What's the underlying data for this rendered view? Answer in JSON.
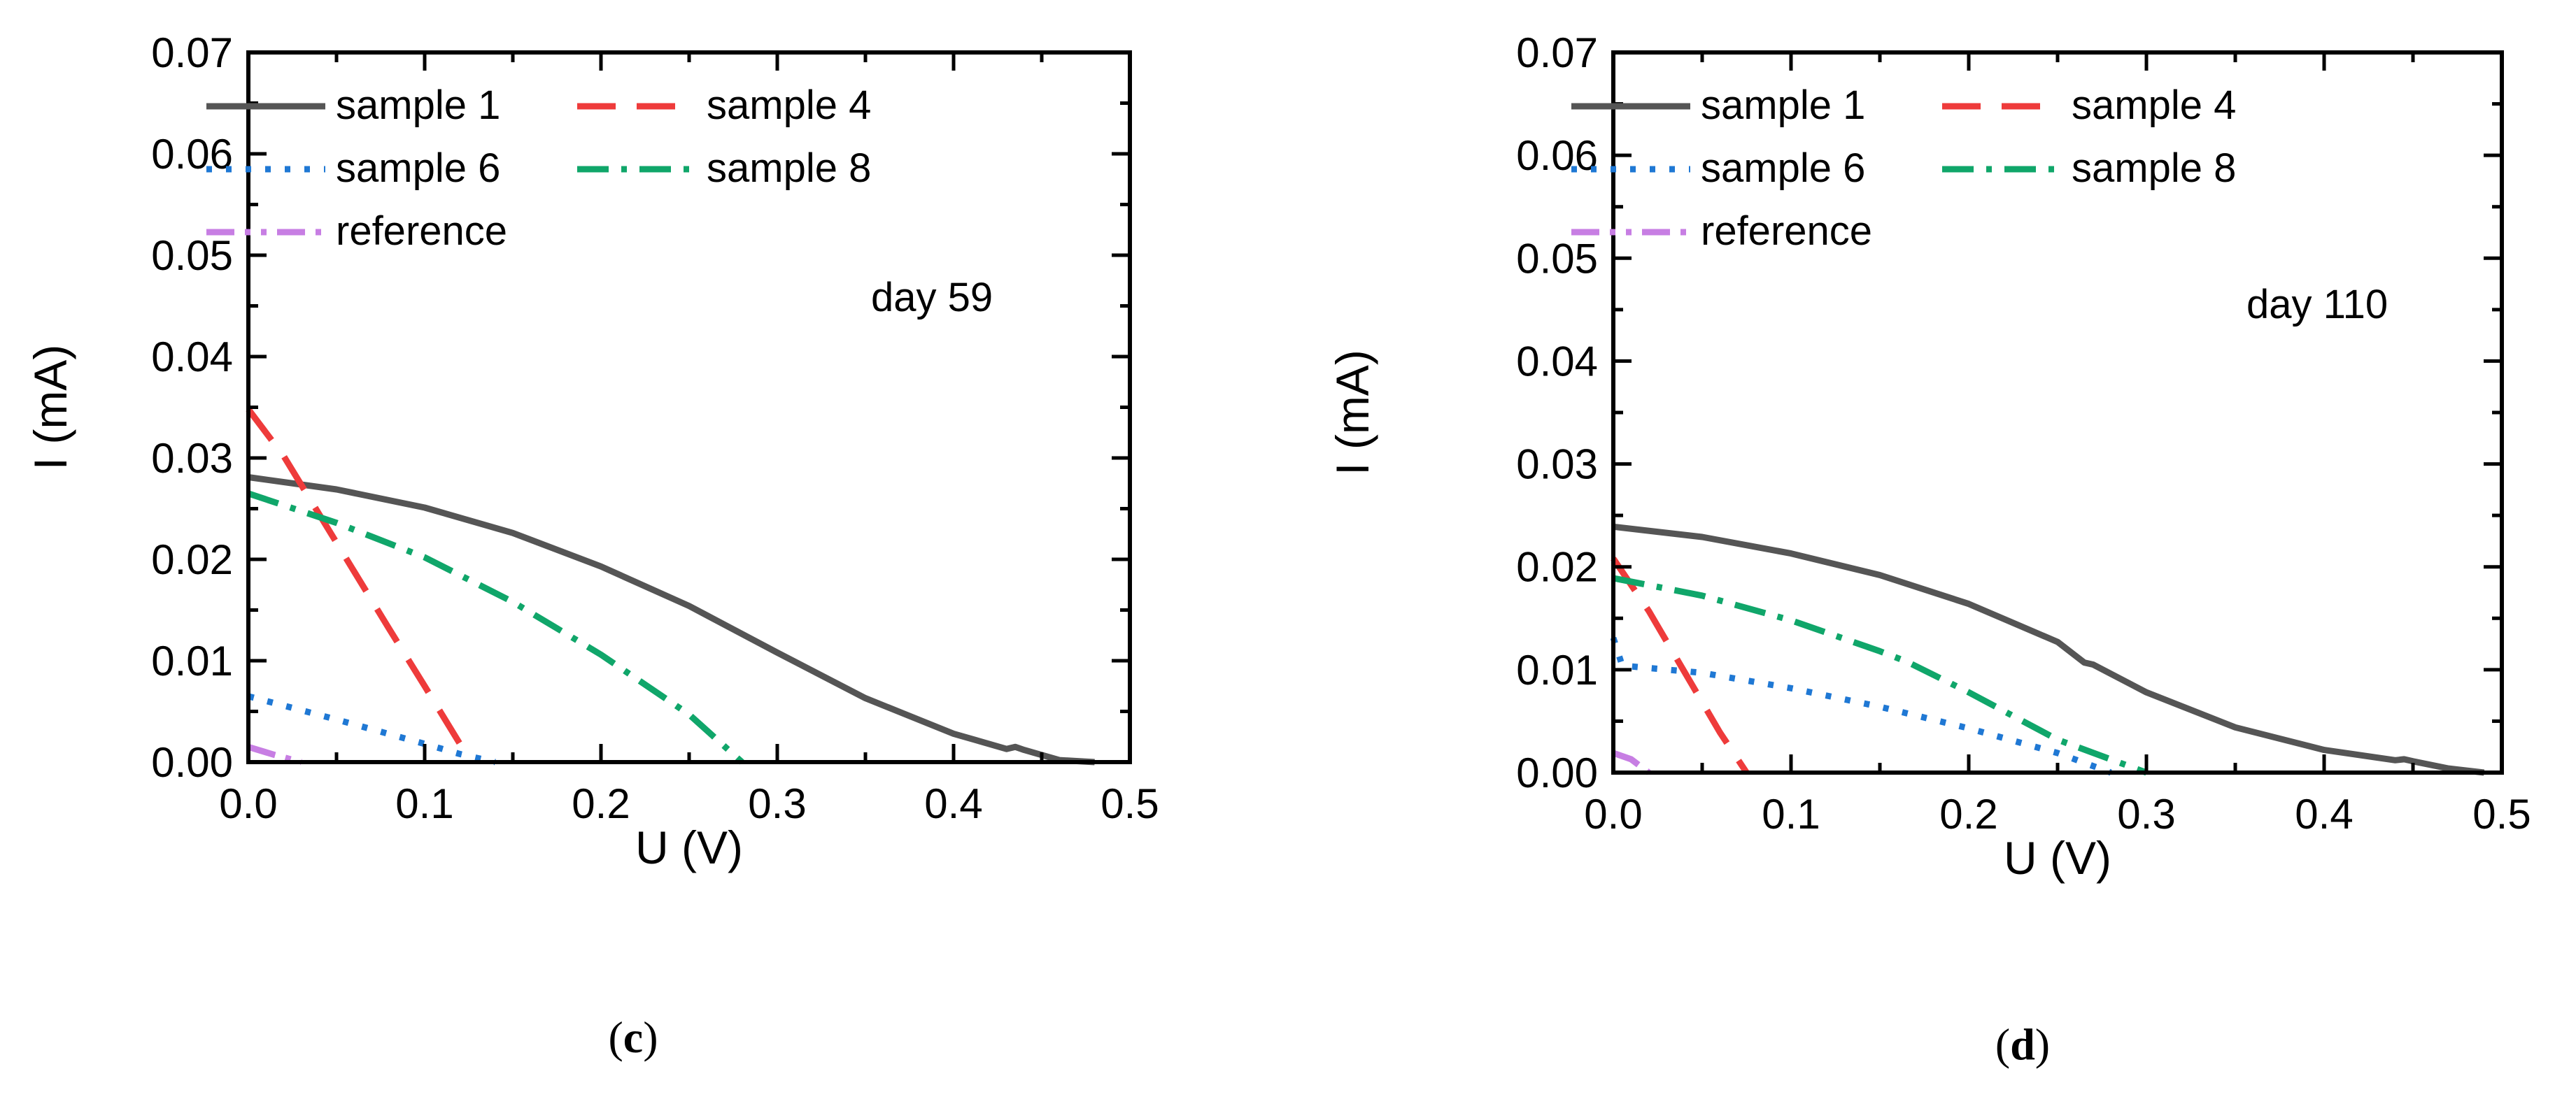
{
  "chart_data": [
    {
      "type": "line",
      "panel_caption": {
        "open": "(",
        "letter": "c",
        "close": ")"
      },
      "annotation": "day 59",
      "xlabel": "U (V)",
      "ylabel": "I (mA)",
      "xlim": [
        0.0,
        0.5
      ],
      "ylim": [
        0.0,
        0.07
      ],
      "xticks": [
        "0.0",
        "0.1",
        "0.2",
        "0.3",
        "0.4",
        "0.5"
      ],
      "yticks": [
        "0.00",
        "0.01",
        "0.02",
        "0.03",
        "0.04",
        "0.05",
        "0.06",
        "0.07"
      ],
      "legend_location": "top-left",
      "series": [
        {
          "name": "sample 1",
          "color": "#555555",
          "dash": "solid",
          "x": [
            0.0,
            0.05,
            0.1,
            0.15,
            0.2,
            0.25,
            0.3,
            0.35,
            0.4,
            0.43,
            0.435,
            0.44,
            0.46,
            0.48
          ],
          "y": [
            0.0281,
            0.0269,
            0.0251,
            0.0226,
            0.0193,
            0.0154,
            0.0108,
            0.0063,
            0.0028,
            0.0013,
            0.0015,
            0.0012,
            0.0002,
            0.0
          ]
        },
        {
          "name": "sample 4",
          "color": "#ee3b3b",
          "dash": "dashed",
          "x": [
            0.0,
            0.02,
            0.04,
            0.06,
            0.08,
            0.1,
            0.12,
            0.125
          ],
          "y": [
            0.0348,
            0.0302,
            0.0245,
            0.0188,
            0.0131,
            0.0075,
            0.0018,
            0.0
          ]
        },
        {
          "name": "sample 6",
          "color": "#1f78d4",
          "dash": "dotted",
          "x": [
            0.0,
            0.05,
            0.1,
            0.12,
            0.14
          ],
          "y": [
            0.0065,
            0.0042,
            0.0018,
            0.0008,
            0.0
          ]
        },
        {
          "name": "sample 8",
          "color": "#10a66a",
          "dash": "dashdot",
          "x": [
            0.0,
            0.05,
            0.1,
            0.15,
            0.2,
            0.25,
            0.28
          ],
          "y": [
            0.0265,
            0.0236,
            0.0202,
            0.0158,
            0.0106,
            0.0047,
            0.0
          ]
        },
        {
          "name": "reference",
          "color": "#c77ee3",
          "dash": "dashdotdot",
          "x": [
            0.0,
            0.015,
            0.03
          ],
          "y": [
            0.0015,
            0.0007,
            0.0
          ]
        }
      ]
    },
    {
      "type": "line",
      "panel_caption": {
        "open": "(",
        "letter": "d",
        "close": ")"
      },
      "annotation": "day 110",
      "xlabel": "U (V)",
      "ylabel": "I (mA)",
      "xlim": [
        0.0,
        0.5
      ],
      "ylim": [
        0.0,
        0.07
      ],
      "xticks": [
        "0.0",
        "0.1",
        "0.2",
        "0.3",
        "0.4",
        "0.5"
      ],
      "yticks": [
        "0.00",
        "0.01",
        "0.02",
        "0.03",
        "0.04",
        "0.05",
        "0.06",
        "0.07"
      ],
      "legend_location": "top-left",
      "series": [
        {
          "name": "sample 1",
          "color": "#555555",
          "dash": "solid",
          "x": [
            0.0,
            0.05,
            0.1,
            0.15,
            0.2,
            0.25,
            0.265,
            0.27,
            0.3,
            0.35,
            0.4,
            0.44,
            0.445,
            0.45,
            0.47,
            0.49
          ],
          "y": [
            0.0239,
            0.0229,
            0.0213,
            0.0192,
            0.0164,
            0.0127,
            0.0107,
            0.0105,
            0.0078,
            0.0044,
            0.0022,
            0.0012,
            0.0013,
            0.0011,
            0.0004,
            0.0
          ]
        },
        {
          "name": "sample 4",
          "color": "#ee3b3b",
          "dash": "dashed",
          "x": [
            0.0,
            0.02,
            0.04,
            0.06,
            0.075
          ],
          "y": [
            0.0208,
            0.0157,
            0.0098,
            0.0039,
            0.0
          ]
        },
        {
          "name": "sample 6",
          "color": "#1f78d4",
          "dash": "dotted",
          "x": [
            0.0,
            0.005,
            0.05,
            0.1,
            0.15,
            0.2,
            0.25,
            0.28
          ],
          "y": [
            0.0131,
            0.0104,
            0.0097,
            0.0082,
            0.0064,
            0.0043,
            0.0019,
            0.0
          ]
        },
        {
          "name": "sample 8",
          "color": "#10a66a",
          "dash": "dashdot",
          "x": [
            0.0,
            0.05,
            0.1,
            0.15,
            0.165,
            0.2,
            0.25,
            0.3
          ],
          "y": [
            0.0189,
            0.0172,
            0.0148,
            0.0118,
            0.0108,
            0.0078,
            0.0032,
            0.0
          ]
        },
        {
          "name": "reference",
          "color": "#c77ee3",
          "dash": "dashdotdot",
          "x": [
            0.0,
            0.01,
            0.02
          ],
          "y": [
            0.0019,
            0.0013,
            0.0
          ]
        }
      ]
    }
  ]
}
